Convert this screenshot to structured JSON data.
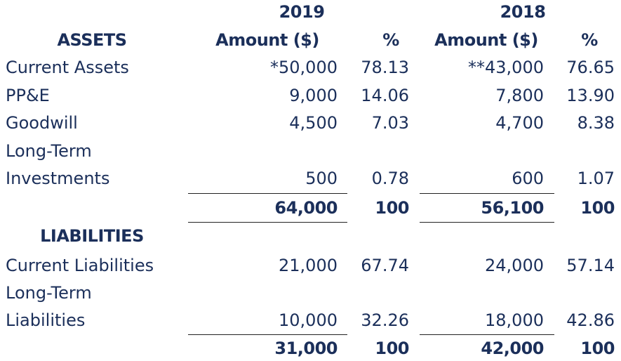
{
  "header": {
    "years": [
      "2019",
      "2018"
    ],
    "columns": [
      "Amount ($)",
      "%",
      "Amount ($)",
      "%"
    ]
  },
  "assets": {
    "title": "ASSETS",
    "rows": [
      {
        "label": [
          "Current Assets"
        ],
        "cells": [
          "*50,000",
          "78.13",
          "**43,000",
          "76.65"
        ]
      },
      {
        "label": [
          "PP&E"
        ],
        "cells": [
          "9,000",
          "14.06",
          "7,800",
          "13.90"
        ]
      },
      {
        "label": [
          "Goodwill"
        ],
        "cells": [
          "4,500",
          "7.03",
          "4,700",
          "8.38"
        ]
      },
      {
        "label": [
          "Long-Term",
          "Investments"
        ],
        "cells": [
          "500",
          "0.78",
          "600",
          "1.07"
        ]
      }
    ],
    "total": [
      "64,000",
      "100",
      "56,100",
      "100"
    ]
  },
  "liabilities": {
    "title": "LIABILITIES",
    "rows": [
      {
        "label": [
          "Current Liabilities"
        ],
        "cells": [
          "21,000",
          "67.74",
          "24,000",
          "57.14"
        ]
      },
      {
        "label": [
          "Long-Term",
          "Liabilities"
        ],
        "cells": [
          "10,000",
          "32.26",
          "18,000",
          "42.86"
        ]
      }
    ],
    "total": [
      "31,000",
      "100",
      "42,000",
      "100"
    ]
  }
}
